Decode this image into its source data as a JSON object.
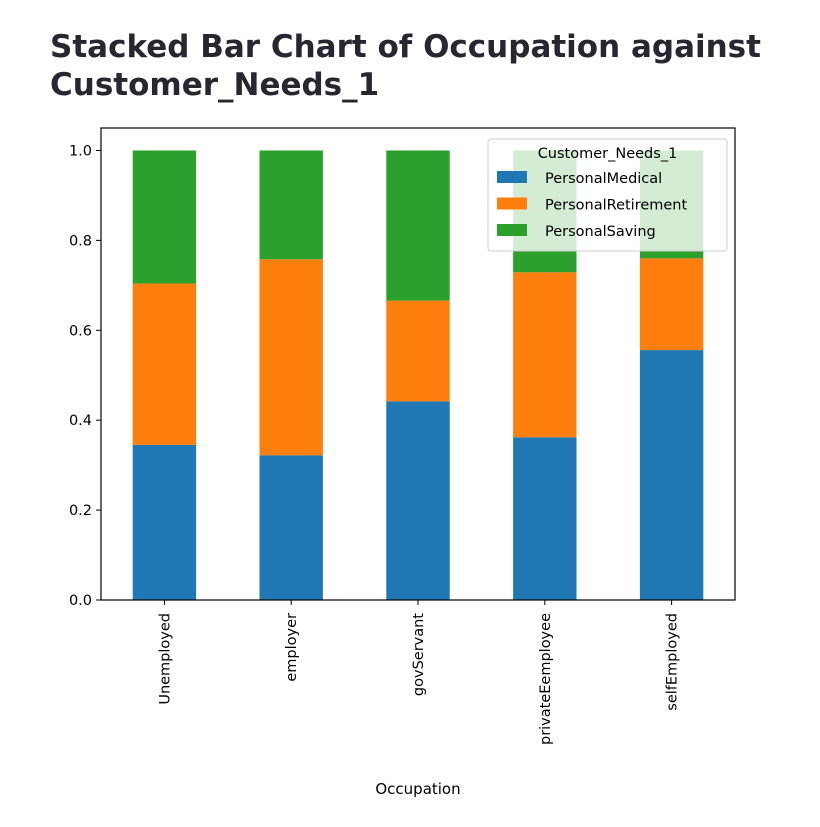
{
  "page": {
    "title": "Stacked Bar Chart of Occupation against Customer_Needs_1"
  },
  "chart_data": {
    "type": "bar",
    "stacked": true,
    "categories": [
      "Unemployed",
      "employer",
      "govServant",
      "privateEemployee",
      "selfEmployed"
    ],
    "series": [
      {
        "name": "PersonalMedical",
        "color": "#1f77b4",
        "values": [
          0.345,
          0.322,
          0.442,
          0.362,
          0.556
        ]
      },
      {
        "name": "PersonalRetirement",
        "color": "#ff7f0e",
        "values": [
          0.359,
          0.436,
          0.224,
          0.367,
          0.204
        ]
      },
      {
        "name": "PersonalSaving",
        "color": "#2ca02c",
        "values": [
          0.296,
          0.242,
          0.334,
          0.271,
          0.24
        ]
      }
    ],
    "xlabel": "Occupation",
    "ylabel": "",
    "ylim": [
      0,
      1.05
    ],
    "yticks": [
      "0.0",
      "0.2",
      "0.4",
      "0.6",
      "0.8",
      "1.0"
    ],
    "legend": {
      "title": "Customer_Needs_1",
      "placement": "top-right"
    },
    "grid": false
  }
}
